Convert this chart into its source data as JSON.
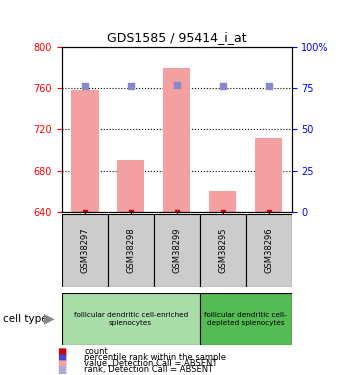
{
  "title": "GDS1585 / 95414_i_at",
  "samples": [
    "GSM38297",
    "GSM38298",
    "GSM38299",
    "GSM38295",
    "GSM38296"
  ],
  "values": [
    758,
    690,
    780,
    660,
    712
  ],
  "ranks": [
    76,
    76,
    77,
    76,
    76
  ],
  "ylim_left": [
    640,
    800
  ],
  "ylim_right": [
    0,
    100
  ],
  "yticks_left": [
    640,
    680,
    720,
    760,
    800
  ],
  "yticks_right": [
    0,
    25,
    50,
    75,
    100
  ],
  "bar_color": "#f4a0a0",
  "rank_dot_color": "#8888cc",
  "count_color": "#cc0000",
  "group1_color": "#aaddaa",
  "group2_color": "#55bb55",
  "sample_box_color": "#cccccc",
  "legend_items": [
    {
      "color": "#cc0000",
      "label": "count"
    },
    {
      "color": "#4444cc",
      "label": "percentile rank within the sample"
    },
    {
      "color": "#f4a0a0",
      "label": "value, Detection Call = ABSENT"
    },
    {
      "color": "#aaaadd",
      "label": "rank, Detection Call = ABSENT"
    }
  ],
  "cell_type_label": "cell type"
}
